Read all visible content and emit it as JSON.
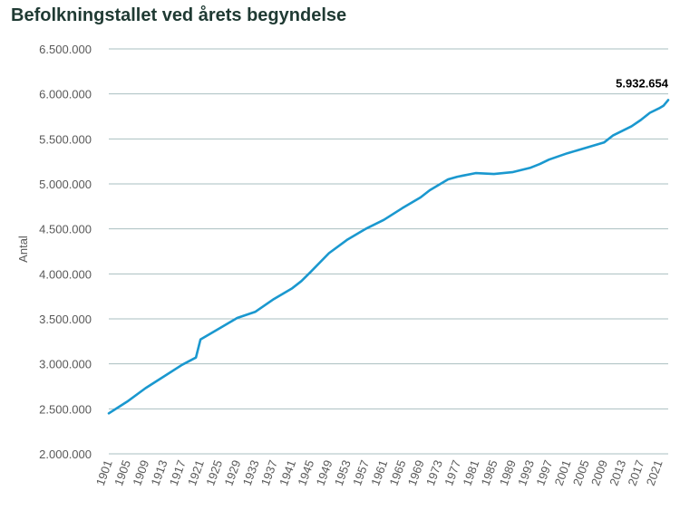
{
  "title": "Befolkningstallet ved årets begyndelse",
  "colors": {
    "line": "#1a98cf",
    "grid": "#a9bfc0",
    "title": "#1f3a33"
  },
  "chart_data": {
    "type": "line",
    "title": "Befolkningstallet ved årets begyndelse",
    "xlabel": "",
    "ylabel": "Antal",
    "ylim": [
      2000000,
      6500000
    ],
    "yticks": [
      2000000,
      2500000,
      3000000,
      3500000,
      4000000,
      4500000,
      5000000,
      5500000,
      6000000,
      6500000
    ],
    "ytick_labels": [
      "2.000.000",
      "2.500.000",
      "3.000.000",
      "3.500.000",
      "4.000.000",
      "4.500.000",
      "5.000.000",
      "5.500.000",
      "6.000.000",
      "6.500.000"
    ],
    "xlim": [
      1901,
      2023
    ],
    "xtick_labels": [
      "1901",
      "1905",
      "1909",
      "1913",
      "1917",
      "1921",
      "1925",
      "1929",
      "1933",
      "1937",
      "1941",
      "1945",
      "1949",
      "1953",
      "1957",
      "1961",
      "1965",
      "1969",
      "1973",
      "1977",
      "1981",
      "1985",
      "1989",
      "1993",
      "1997",
      "2001",
      "2005",
      "2009",
      "2013",
      "2017",
      "2021"
    ],
    "grid": true,
    "end_label": "5.932.654",
    "series": [
      {
        "name": "Befolkningstallet",
        "x": [
          1901,
          1905,
          1909,
          1913,
          1917,
          1920,
          1921,
          1925,
          1929,
          1933,
          1937,
          1941,
          1943,
          1945,
          1949,
          1953,
          1957,
          1961,
          1965,
          1969,
          1971,
          1973,
          1975,
          1977,
          1981,
          1985,
          1989,
          1993,
          1995,
          1997,
          2001,
          2005,
          2009,
          2011,
          2013,
          2015,
          2017,
          2019,
          2021,
          2022,
          2023
        ],
        "values": [
          2450000,
          2580000,
          2730000,
          2860000,
          2990000,
          3070000,
          3270000,
          3390000,
          3510000,
          3580000,
          3720000,
          3840000,
          3920000,
          4020000,
          4230000,
          4380000,
          4500000,
          4600000,
          4730000,
          4850000,
          4930000,
          4990000,
          5050000,
          5080000,
          5120000,
          5110000,
          5130000,
          5180000,
          5220000,
          5270000,
          5340000,
          5400000,
          5460000,
          5540000,
          5590000,
          5640000,
          5710000,
          5790000,
          5840000,
          5870000,
          5932654
        ]
      }
    ]
  }
}
